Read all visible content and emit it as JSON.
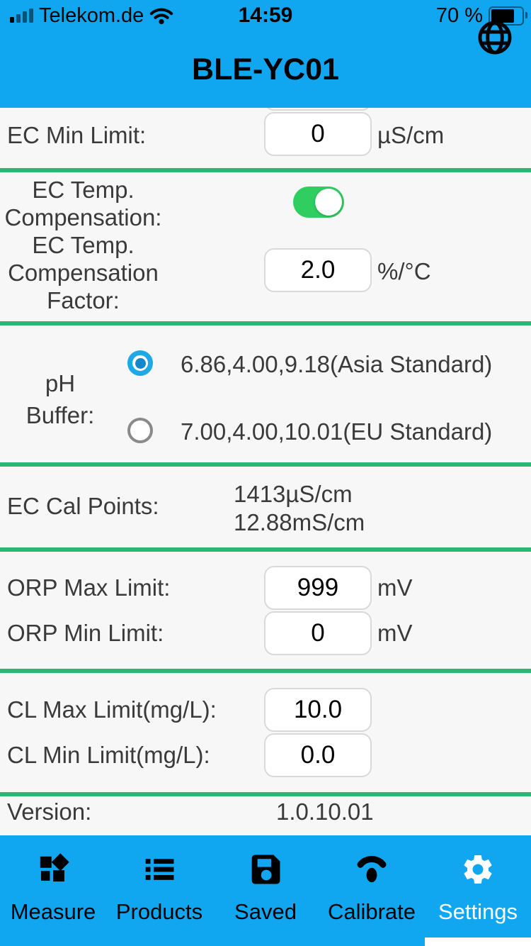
{
  "colors": {
    "accent_cyan": "#10a7f0",
    "divider_green": "#2bb673",
    "toggle_green": "#30cd60",
    "radio_blue": "#1fa8e6",
    "background": "#f7f7f7"
  },
  "status_bar": {
    "carrier": "Telekom.de",
    "time": "14:59",
    "battery": "70 %"
  },
  "header": {
    "title": "BLE-YC01"
  },
  "settings": {
    "ec_min": {
      "label": "EC Min Limit:",
      "value": "0",
      "unit": "µS/cm"
    },
    "ec_temp_comp": {
      "label_line1": "EC Temp.",
      "label_line2": "Compensation:",
      "enabled": true
    },
    "ec_temp_factor": {
      "label_line1": "EC Temp.",
      "label_line2": "Compensation",
      "label_line3": "Factor:",
      "value": "2.0",
      "unit": "%/°C"
    },
    "ph_buffer": {
      "label_line1": "pH",
      "label_line2": "Buffer:",
      "options": [
        {
          "label": "6.86,4.00,9.18(Asia Standard)",
          "selected": true
        },
        {
          "label": "7.00,4.00,10.01(EU Standard)",
          "selected": false
        }
      ]
    },
    "ec_cal_points": {
      "label": "EC Cal Points:",
      "values": [
        "1413µS/cm",
        "12.88mS/cm"
      ]
    },
    "orp_max": {
      "label": "ORP Max Limit:",
      "value": "999",
      "unit": "mV"
    },
    "orp_min": {
      "label": "ORP Min Limit:",
      "value": "0",
      "unit": "mV"
    },
    "cl_max": {
      "label": "CL Max Limit(mg/L):",
      "value": "10.0"
    },
    "cl_min": {
      "label": "CL Min Limit(mg/L):",
      "value": "0.0"
    },
    "version": {
      "label": "Version:",
      "value": "1.0.10.01"
    }
  },
  "tab_bar": {
    "tabs": [
      {
        "label": "Measure"
      },
      {
        "label": "Products"
      },
      {
        "label": "Saved"
      },
      {
        "label": "Calibrate"
      },
      {
        "label": "Settings"
      }
    ]
  }
}
